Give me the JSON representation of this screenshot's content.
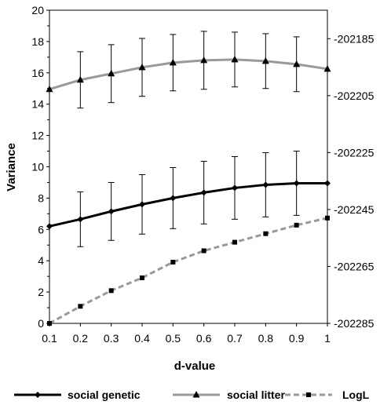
{
  "chart_data": {
    "type": "line",
    "title": "",
    "xlabel": "d-value",
    "ylabel": "Variance",
    "x": [
      0.1,
      0.2,
      0.3,
      0.4,
      0.5,
      0.6,
      0.7,
      0.8,
      0.9,
      1
    ],
    "x_ticks": [
      "0.1",
      "0.2",
      "0.3",
      "0.4",
      "0.5",
      "0.6",
      "0.7",
      "0.8",
      "0.9",
      "1"
    ],
    "ylim": [
      0,
      20
    ],
    "y_ticks": [
      "0",
      "2",
      "4",
      "6",
      "8",
      "10",
      "12",
      "14",
      "16",
      "18",
      "20"
    ],
    "y2lim": [
      -202285,
      -202175
    ],
    "y2_ticks": [
      "-202285",
      "-202265",
      "-202245",
      "-202225",
      "-202205",
      "-202185"
    ],
    "y2_tick_values": [
      -202285,
      -202265,
      -202245,
      -202225,
      -202205,
      -202185
    ],
    "grid": false,
    "legend_position": "bottom",
    "series": [
      {
        "name": "social genetic",
        "axis": "left",
        "color": "#000000",
        "marker": "diamond",
        "dash": "solid",
        "values": [
          6.2,
          6.65,
          7.15,
          7.6,
          8.0,
          8.35,
          8.65,
          8.85,
          8.95,
          8.95
        ],
        "error": [
          null,
          1.75,
          1.85,
          1.9,
          1.95,
          2.0,
          2.0,
          2.05,
          2.05,
          null
        ]
      },
      {
        "name": "social litter",
        "axis": "left",
        "color": "#999999",
        "marker": "triangle",
        "dash": "solid",
        "values": [
          14.95,
          15.55,
          15.95,
          16.35,
          16.65,
          16.8,
          16.85,
          16.75,
          16.55,
          16.25
        ],
        "error": [
          null,
          1.8,
          1.85,
          1.85,
          1.8,
          1.85,
          1.75,
          1.75,
          1.75,
          null
        ]
      },
      {
        "name": "LogL",
        "axis": "right",
        "color": "#999999",
        "marker": "square",
        "dash": "dashed",
        "values": [
          -202285,
          -202279,
          -202273.5,
          -202269,
          -202263.5,
          -202259.5,
          -202256.5,
          -202253.5,
          -202250.5,
          -202248
        ]
      }
    ]
  }
}
